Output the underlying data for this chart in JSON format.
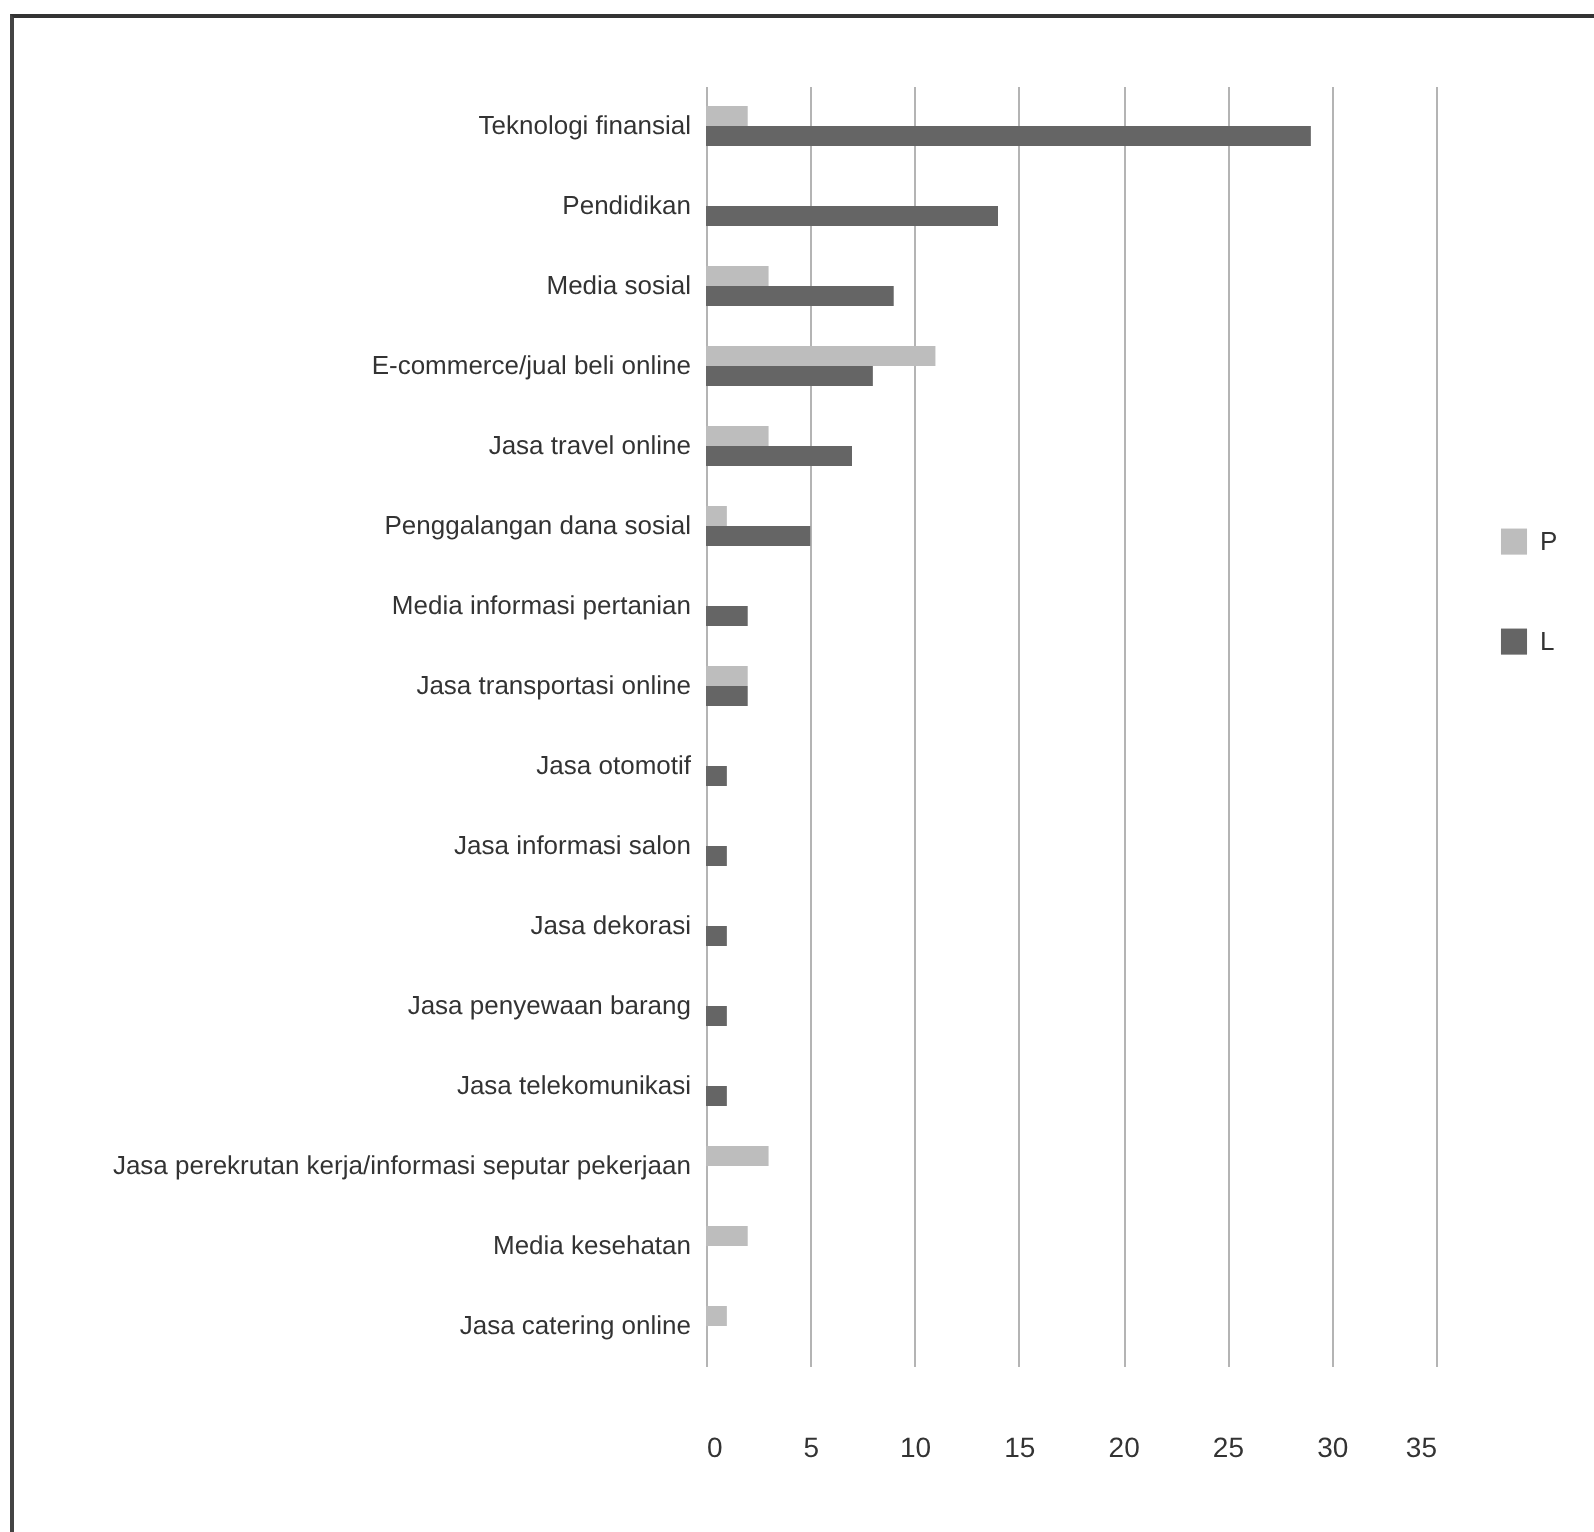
{
  "chart_data": {
    "type": "bar",
    "orientation": "horizontal",
    "categories": [
      "Teknologi finansial",
      "Pendidikan",
      "Media sosial",
      "E-commerce/jual beli online",
      "Jasa travel online",
      "Penggalangan dana sosial",
      "Media informasi pertanian",
      "Jasa transportasi online",
      "Jasa otomotif",
      "Jasa informasi salon",
      "Jasa dekorasi",
      "Jasa penyewaan barang",
      "Jasa telekomunikasi",
      "Jasa perekrutan kerja/informasi seputar pekerjaan",
      "Media kesehatan",
      "Jasa catering online"
    ],
    "series": [
      {
        "name": "P",
        "color": "#bdbdbd",
        "values": [
          2,
          null,
          3,
          11,
          3,
          1,
          null,
          2,
          null,
          null,
          null,
          null,
          null,
          3,
          2,
          1
        ]
      },
      {
        "name": "L",
        "color": "#656565",
        "values": [
          29,
          14,
          9,
          8,
          7,
          5,
          2,
          2,
          1,
          1,
          1,
          1,
          1,
          null,
          null,
          null
        ]
      }
    ],
    "xlim": [
      0,
      35
    ],
    "xticks": [
      0,
      5,
      10,
      15,
      20,
      25,
      30,
      35
    ],
    "grid": "x",
    "legend": "right"
  }
}
